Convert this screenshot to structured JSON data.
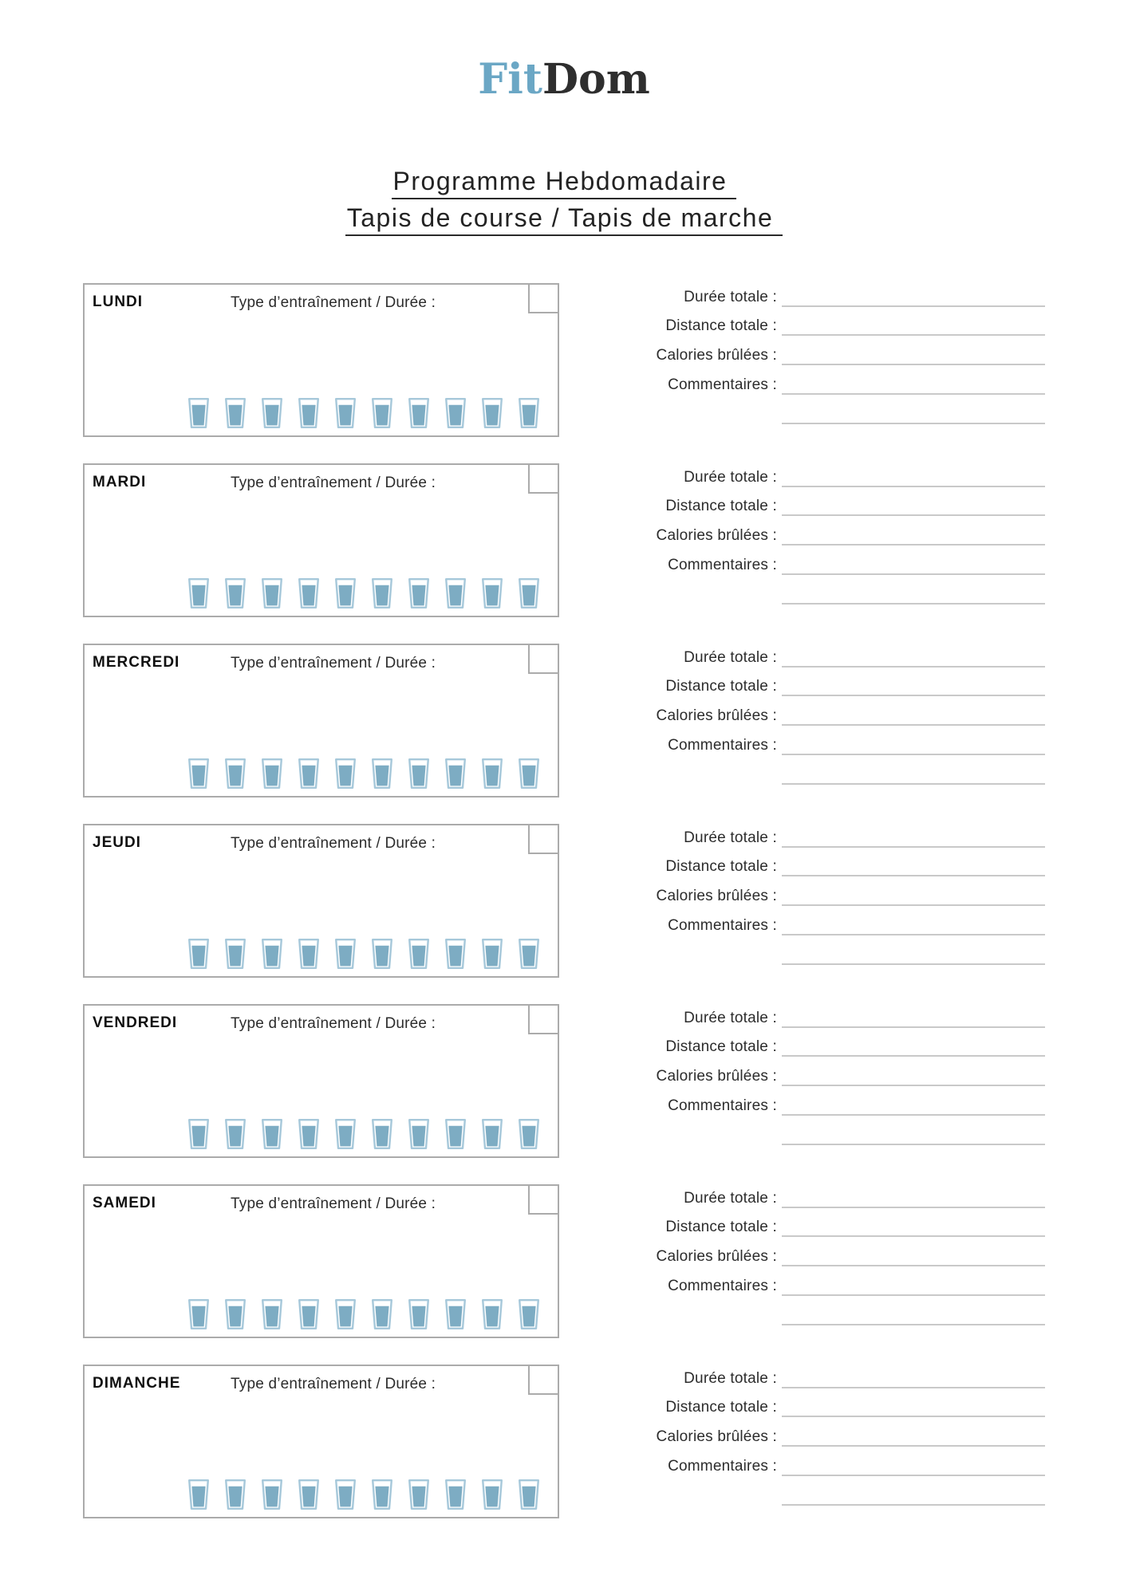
{
  "logo": {
    "fit": "Fit",
    "dom": "Dom"
  },
  "title": {
    "line1": "Programme Hebdomadaire",
    "line2": "Tapis de course / Tapis de marche"
  },
  "day_box": {
    "type_duration_label": "Type d’entraînement / Durée :",
    "glasses_per_day": 10,
    "checkbox_checked": false
  },
  "fields": [
    {
      "label": "Durée totale :"
    },
    {
      "label": "Distance totale :"
    },
    {
      "label": "Calories brûlées :"
    },
    {
      "label": "Commentaires :"
    }
  ],
  "days": [
    {
      "name": "LUNDI"
    },
    {
      "name": "MARDI"
    },
    {
      "name": "MERCREDI"
    },
    {
      "name": "JEUDI"
    },
    {
      "name": "VENDREDI"
    },
    {
      "name": "SAMEDI"
    },
    {
      "name": "DIMANCHE"
    }
  ],
  "icons": {
    "water_glass": "water-glass-icon",
    "day_checkbox": "empty-checkbox"
  },
  "colors": {
    "logo_blue": "#6BA7C5",
    "logo_dark": "#2E2E2E",
    "glass_fill": "#7DACC3",
    "glass_outline": "#A6C8DA",
    "box_border": "#ABABAB",
    "line_gray": "#C9C9C9"
  }
}
